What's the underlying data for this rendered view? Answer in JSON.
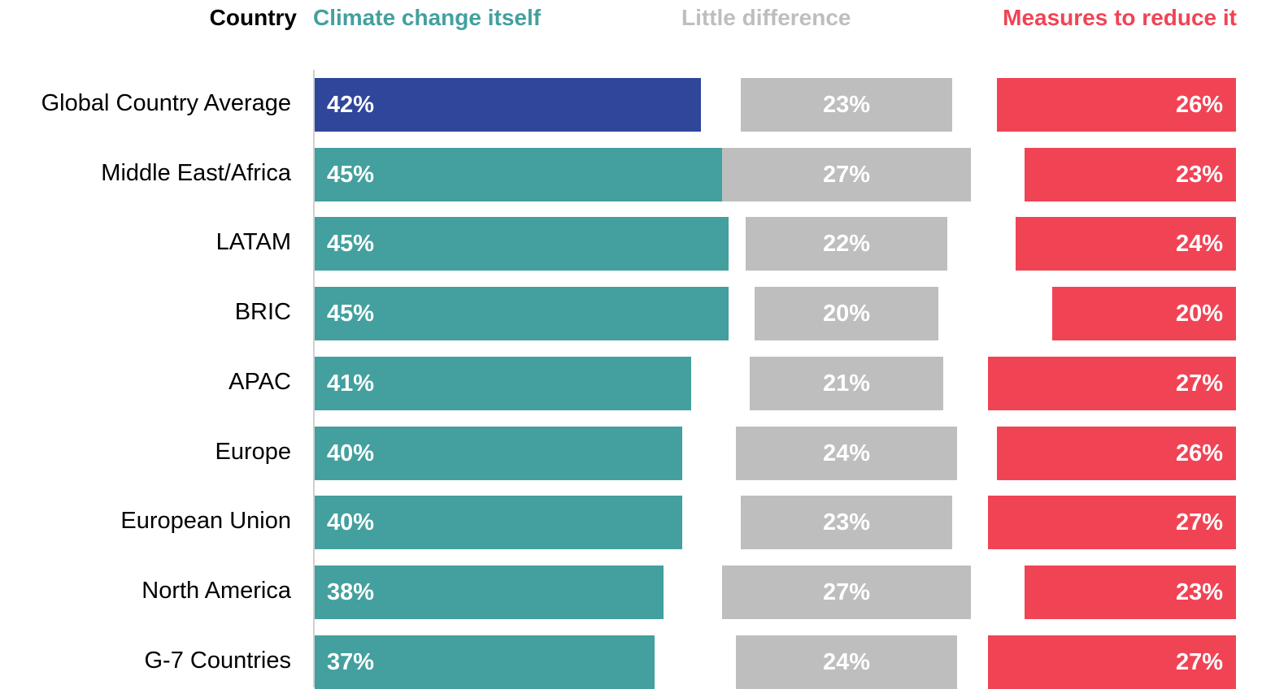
{
  "header": {
    "country_label": "Country",
    "climate_label": "Climate change itself",
    "little_label": "Little difference",
    "measures_label": "Measures to reduce it"
  },
  "colors": {
    "climate": "#43a09e",
    "climate_highlight": "#30469b",
    "little": "#bebebe",
    "measures": "#f04455",
    "country_header": "#000000"
  },
  "chart_data": {
    "type": "bar",
    "title": "",
    "categories": [
      "Global Country Average",
      "Middle East/Africa",
      "LATAM",
      "BRIC",
      "APAC",
      "Europe",
      "European Union",
      "North America",
      "G-7 Countries"
    ],
    "series": [
      {
        "name": "Climate change itself",
        "values": [
          42,
          45,
          45,
          45,
          41,
          40,
          40,
          38,
          37
        ],
        "labels": [
          "42%",
          "45%",
          "45%",
          "45%",
          "41%",
          "40%",
          "40%",
          "38%",
          "37%"
        ]
      },
      {
        "name": "Little difference",
        "values": [
          23,
          27,
          22,
          20,
          21,
          24,
          23,
          27,
          24
        ],
        "labels": [
          "23%",
          "27%",
          "22%",
          "20%",
          "21%",
          "24%",
          "23%",
          "27%",
          "24%"
        ]
      },
      {
        "name": "Measures to reduce it",
        "values": [
          26,
          23,
          24,
          20,
          27,
          26,
          27,
          23,
          27
        ],
        "labels": [
          "26%",
          "23%",
          "24%",
          "20%",
          "27%",
          "26%",
          "27%",
          "23%",
          "27%"
        ]
      }
    ],
    "highlight_category": "Global Country Average"
  }
}
